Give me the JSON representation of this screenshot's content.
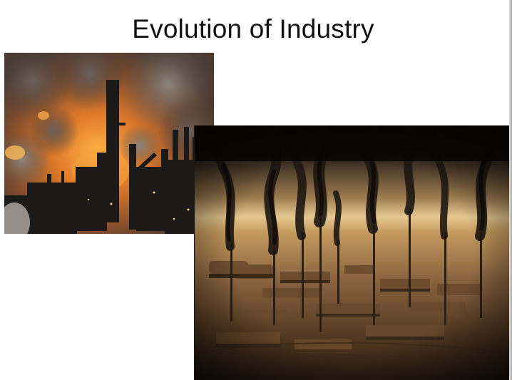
{
  "slide": {
    "title": "Evolution of Industry"
  },
  "images": [
    {
      "name": "smokestack-factory-photo"
    },
    {
      "name": "polluted-industrial-landscape-photo"
    }
  ]
}
